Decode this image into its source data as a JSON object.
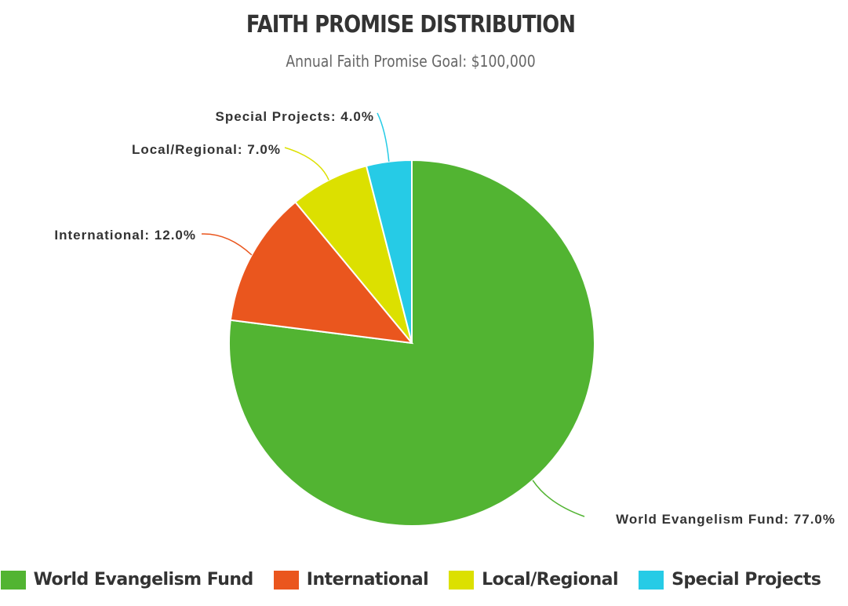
{
  "chart_data": {
    "type": "pie",
    "title": "FAITH PROMISE DISTRIBUTION",
    "subtitle": "Annual Faith Promise Goal: $100,000",
    "legend_position": "bottom",
    "slices": [
      {
        "name": "World Evangelism Fund",
        "value": 77.0,
        "label": "World Evangelism Fund: 77.0%",
        "color": "#52b432"
      },
      {
        "name": "International",
        "value": 12.0,
        "label": "International: 12.0%",
        "color": "#ea561e"
      },
      {
        "name": "Local/Regional",
        "value": 7.0,
        "label": "Local/Regional: 7.0%",
        "color": "#dce000"
      },
      {
        "name": "Special Projects",
        "value": 4.0,
        "label": "Special Projects: 4.0%",
        "color": "#26cbe6"
      }
    ]
  }
}
